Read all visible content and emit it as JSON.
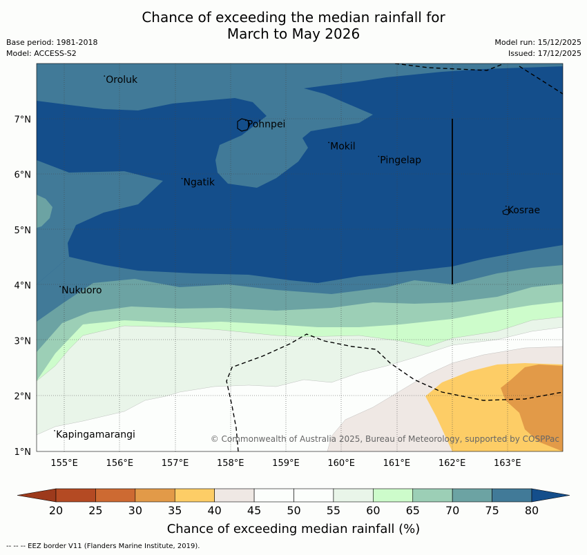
{
  "title": {
    "line1": "Chance of exceeding the median rainfall for",
    "line2": "March to May 2026"
  },
  "meta": {
    "base_period": "Base period: 1981-2018",
    "model": "Model: ACCESS-S2",
    "model_run": "Model run: 15/12/2025",
    "issued": "Issued: 17/12/2025"
  },
  "map": {
    "copyright": "© Commonwealth of Australia 2025, Bureau of Meteorology, supported by COSPPac",
    "lon_ticks": [
      155,
      156,
      157,
      158,
      159,
      160,
      161,
      162,
      163
    ],
    "lon_labels": [
      "155°E",
      "156°E",
      "157°E",
      "158°E",
      "159°E",
      "160°E",
      "161°E",
      "162°E",
      "163°E"
    ],
    "lat_ticks": [
      1,
      2,
      3,
      4,
      5,
      6,
      7
    ],
    "lat_labels": [
      "1°N",
      "2°N",
      "3°N",
      "4°N",
      "5°N",
      "6°N",
      "7°N"
    ],
    "lon_range": [
      154.5,
      164.0
    ],
    "lat_range": [
      1.0,
      8.0
    ],
    "places": [
      {
        "name": "Oroluk",
        "lon": 155.75,
        "lat": 7.65
      },
      {
        "name": "Pohnpei",
        "lon": 158.3,
        "lat": 6.85
      },
      {
        "name": "Mokil",
        "lon": 159.8,
        "lat": 6.45
      },
      {
        "name": "Pingelap",
        "lon": 160.7,
        "lat": 6.2
      },
      {
        "name": "Ngatik",
        "lon": 157.15,
        "lat": 5.8
      },
      {
        "name": "Kosrae",
        "lon": 163.0,
        "lat": 5.3
      },
      {
        "name": "Nukuoro",
        "lon": 154.95,
        "lat": 3.85
      },
      {
        "name": "Kapingamarangi",
        "lon": 154.85,
        "lat": 1.25
      }
    ]
  },
  "colorbar": {
    "label": "Chance of exceeding median rainfall (%)",
    "ticks": [
      "20",
      "25",
      "30",
      "35",
      "40",
      "45",
      "50",
      "55",
      "60",
      "65",
      "70",
      "75",
      "80"
    ],
    "colors": [
      "#b44a23",
      "#cd6a32",
      "#e29a48",
      "#fdcd66",
      "#efe8e4",
      "#fcfefc",
      "#fcfefc",
      "#e9f5e9",
      "#cdfccb",
      "#9ccfb6",
      "#6ca3a3",
      "#417a98"
    ],
    "under_color": "#9d3a1c",
    "over_color": "#144e8b"
  },
  "footnote": "--  --  -- EEZ border V11 (Flanders Marine Institute, 2019)."
}
